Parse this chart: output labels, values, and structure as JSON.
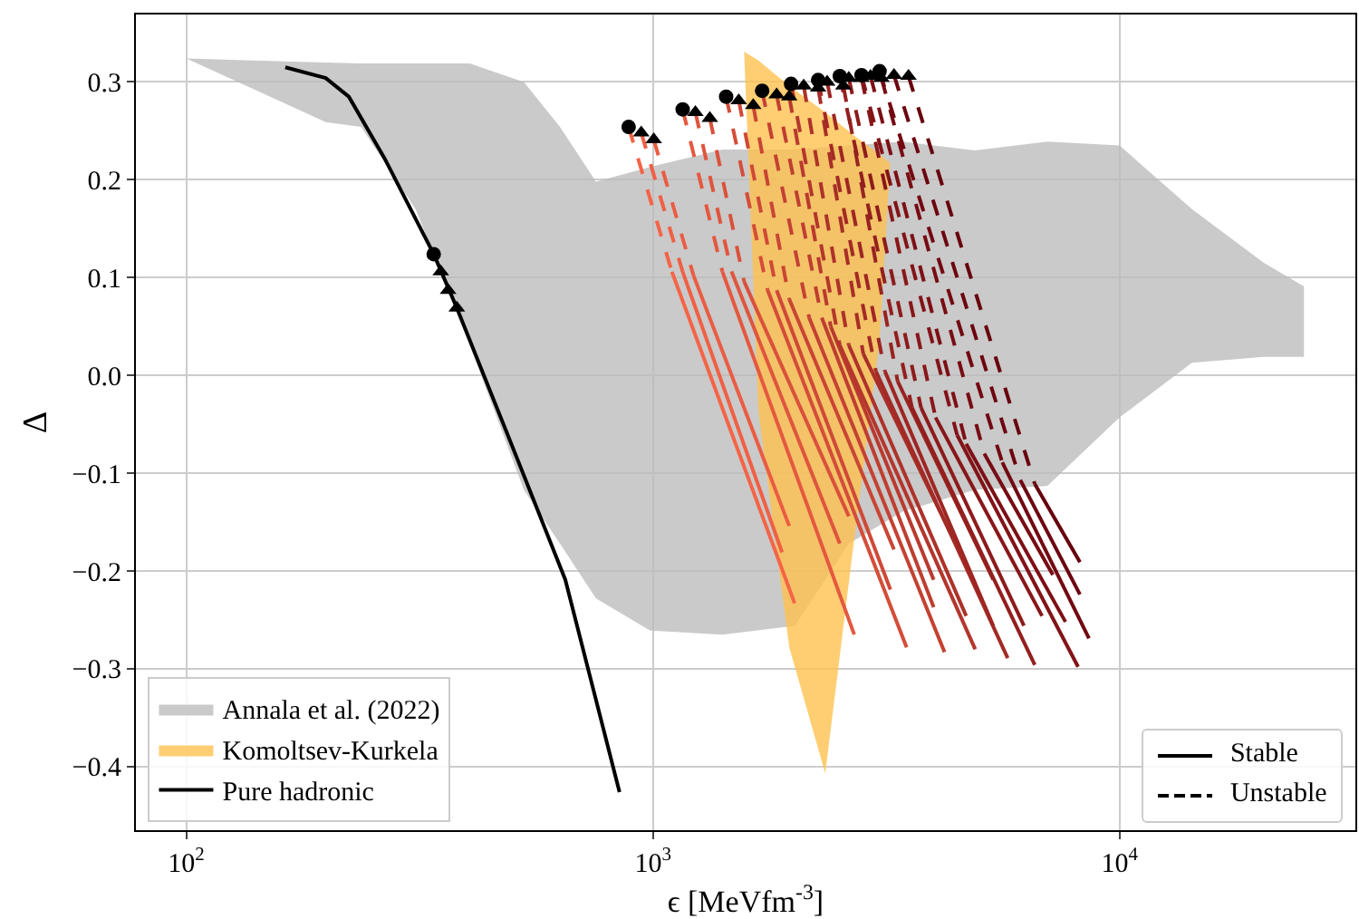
{
  "chart_data": {
    "type": "line",
    "xlabel": "ϵ [MeVfm$^{-3}$]",
    "ylabel": "Δ",
    "log": "x",
    "grid": true,
    "legend": [
      "bottom left",
      "bottom right"
    ],
    "xlim": [
      78,
      32000
    ],
    "xticks": [
      {
        "value": 100,
        "label": "10$^{2}$"
      },
      {
        "value": 1000,
        "label": "10$^{3}$"
      },
      {
        "value": 10000,
        "label": "10$^{4}$"
      }
    ],
    "ylim": [
      -0.465,
      0.369
    ],
    "yticks": [
      {
        "value": -0.4,
        "label": "−0.4"
      },
      {
        "value": -0.3,
        "label": "−0.3"
      },
      {
        "value": -0.2,
        "label": "−0.2"
      },
      {
        "value": -0.1,
        "label": "−0.1"
      },
      {
        "value": 0,
        "label": "0.0"
      },
      0.1,
      0.2,
      0.3
    ],
    "series": [
      {
        "type": "area",
        "name": "Annala et al. (2022)",
        "color": "#bdbdbd",
        "x": [
          100,
          199,
          237,
          310,
          405,
          529,
          632,
          755,
          986,
          1409,
          2014,
          2630,
          3434,
          4898,
          7000,
          10000,
          14290,
          20370,
          24830
        ],
        "values": [
          null,
          null,
          null,
          null,
          null,
          null,
          null,
          null,
          null,
          null,
          null,
          null,
          null,
          null,
          null,
          null,
          null,
          null,
          null
        ],
        "upper": [
          0.324,
          0.32,
          0.319,
          0.319,
          0.319,
          0.3,
          0.254,
          0.198,
          0.213,
          0.231,
          0.231,
          0.235,
          0.239,
          0.23,
          0.239,
          0.235,
          0.17,
          0.115,
          0.091
        ],
        "lower": [
          0.324,
          0.259,
          0.254,
          0.17,
          0.031,
          -0.117,
          -0.172,
          -0.228,
          -0.261,
          -0.265,
          -0.256,
          -0.172,
          -0.139,
          -0.117,
          -0.113,
          -0.043,
          0.013,
          0.019,
          0.019
        ]
      },
      {
        "type": "area",
        "name": "Komoltsev-Kurkela",
        "color": "#ffc250",
        "x": [
          1568,
          1683,
          1959,
          2340,
          2700,
          3060,
          3224
        ],
        "values": [
          null,
          null,
          null,
          null,
          null,
          null,
          null
        ],
        "upper": [
          0.331,
          0.322,
          0.296,
          0.269,
          0.245,
          0.226,
          0.217
        ],
        "lower": [
          0.331,
          -0.037,
          -0.278,
          -0.407,
          -0.167,
          0.037,
          0.217
        ]
      },
      {
        "line_style": "dashed",
        "color": "#f56446",
        "x": [
          887,
          1098
        ],
        "values": [
          0.254,
          0.106
        ]
      },
      {
        "line_style": "solid",
        "color": "#f56446",
        "x": [
          1098,
          2012
        ],
        "values": [
          0.106,
          -0.233
        ]
      },
      {
        "line_style": "dashed",
        "color": "#f06044",
        "x": [
          944,
          1158
        ],
        "values": [
          0.248,
          0.106
        ]
      },
      {
        "line_style": "solid",
        "color": "#f06044",
        "x": [
          1158,
          1891
        ],
        "values": [
          0.106,
          -0.181
        ]
      },
      {
        "line_style": "dashed",
        "color": "#ea5c42",
        "x": [
          1004,
          1222
        ],
        "values": [
          0.241,
          0.102
        ]
      },
      {
        "line_style": "solid",
        "color": "#ea5c42",
        "x": [
          1222,
          1959
        ],
        "values": [
          0.102,
          -0.154
        ]
      },
      {
        "line_style": "dashed",
        "color": "#e5583f",
        "x": [
          1158,
          1409
        ],
        "values": [
          0.272,
          0.106
        ]
      },
      {
        "line_style": "solid",
        "color": "#e5583f",
        "x": [
          1409,
          2700
        ],
        "values": [
          0.106,
          -0.265
        ]
      },
      {
        "line_style": "dashed",
        "color": "#df553d",
        "x": [
          1233,
          1474
        ],
        "values": [
          0.269,
          0.106
        ]
      },
      {
        "line_style": "solid",
        "color": "#df553d",
        "x": [
          1474,
          2514
        ],
        "values": [
          0.106,
          -0.172
        ]
      },
      {
        "line_style": "dashed",
        "color": "#da513b",
        "x": [
          1324,
          1568
        ],
        "values": [
          0.263,
          0.096
        ]
      },
      {
        "line_style": "solid",
        "color": "#da513b",
        "x": [
          1568,
          2628
        ],
        "values": [
          0.096,
          -0.144
        ]
      },
      {
        "line_style": "dashed",
        "color": "#d44d39",
        "x": [
          1435,
          1761
        ],
        "values": [
          0.285,
          0.087
        ]
      },
      {
        "line_style": "solid",
        "color": "#d44d39",
        "x": [
          1761,
          3496
        ],
        "values": [
          0.087,
          -0.278
        ]
      },
      {
        "line_style": "dashed",
        "color": "#cf4937",
        "x": [
          1527,
          1841
        ],
        "values": [
          0.281,
          0.087
        ]
      },
      {
        "line_style": "solid",
        "color": "#cf4937",
        "x": [
          1841,
          3227
        ],
        "values": [
          0.087,
          -0.219
        ]
      },
      {
        "line_style": "dashed",
        "color": "#c94534",
        "x": [
          1640,
          1959
        ],
        "values": [
          0.276,
          0.078
        ]
      },
      {
        "line_style": "solid",
        "color": "#c94534",
        "x": [
          1959,
          3285
        ],
        "values": [
          0.078,
          -0.178
        ]
      },
      {
        "line_style": "dashed",
        "color": "#c44132",
        "x": [
          1714,
          2161
        ],
        "values": [
          0.291,
          0.059
        ]
      },
      {
        "line_style": "solid",
        "color": "#c44132",
        "x": [
          2161,
          4215
        ],
        "values": [
          0.059,
          -0.283
        ]
      },
      {
        "line_style": "dashed",
        "color": "#be3e30",
        "x": [
          1841,
          2300
        ],
        "values": [
          0.287,
          0.059
        ]
      },
      {
        "line_style": "solid",
        "color": "#be3e30",
        "x": [
          2300,
          3996
        ],
        "values": [
          0.059,
          -0.237
        ]
      },
      {
        "line_style": "dashed",
        "color": "#b93a2e",
        "x": [
          1959,
          2404
        ],
        "values": [
          0.285,
          0.05
        ]
      },
      {
        "line_style": "solid",
        "color": "#b93a2e",
        "x": [
          2404,
          3996
        ],
        "values": [
          0.05,
          -0.209
        ]
      },
      {
        "line_style": "dashed",
        "color": "#b4362c",
        "x": [
          1977,
          2514
        ],
        "values": [
          0.298,
          0.031
        ]
      },
      {
        "line_style": "solid",
        "color": "#b4362c",
        "x": [
          2514,
          4904
        ],
        "values": [
          0.031,
          -0.28
        ]
      },
      {
        "line_style": "dashed",
        "color": "#ae3229",
        "x": [
          2104,
          2628
        ],
        "values": [
          0.296,
          0.031
        ]
      },
      {
        "line_style": "solid",
        "color": "#ae3229",
        "x": [
          2628,
          4690
        ],
        "values": [
          0.031,
          -0.246
        ]
      },
      {
        "line_style": "dashed",
        "color": "#a82e27",
        "x": [
          2259,
          2823
        ],
        "values": [
          0.294,
          0.022
        ]
      },
      {
        "line_style": "solid",
        "color": "#a82e27",
        "x": [
          2823,
          4904
        ],
        "values": [
          0.022,
          -0.213
        ]
      },
      {
        "line_style": "dashed",
        "color": "#a32a25",
        "x": [
          2259,
          3005
        ],
        "values": [
          0.302,
          0.004
        ]
      },
      {
        "line_style": "solid",
        "color": "#a32a25",
        "x": [
          3005,
          5757
        ],
        "values": [
          0.004,
          -0.289
        ]
      },
      {
        "line_style": "dashed",
        "color": "#9e2623",
        "x": [
          2362,
          3142
        ],
        "values": [
          0.3,
          0.004
        ]
      },
      {
        "line_style": "solid",
        "color": "#9e2623",
        "x": [
          3142,
          5361
        ],
        "values": [
          0.004,
          -0.256
        ]
      },
      {
        "line_style": "dashed",
        "color": "#982320",
        "x": [
          2559,
          3344
        ],
        "values": [
          0.296,
          -0.006
        ]
      },
      {
        "line_style": "solid",
        "color": "#982320",
        "x": [
          3344,
          5361
        ],
        "values": [
          -0.006,
          -0.209
        ]
      },
      {
        "line_style": "dashed",
        "color": "#931f1e",
        "x": [
          2514,
          3591
        ],
        "values": [
          0.306,
          -0.033
        ]
      },
      {
        "line_style": "solid",
        "color": "#931f1e",
        "x": [
          3591,
          6580
        ],
        "values": [
          -0.033,
          -0.296
        ]
      },
      {
        "line_style": "dashed",
        "color": "#8d1b1c",
        "x": [
          2628,
          3754
        ],
        "values": [
          0.304,
          -0.033
        ]
      },
      {
        "line_style": "solid",
        "color": "#8d1b1c",
        "x": [
          3754,
          6237
        ],
        "values": [
          -0.033,
          -0.256
        ]
      },
      {
        "line_style": "dashed",
        "color": "#88171a",
        "x": [
          2798,
          4032
        ],
        "values": [
          0.304,
          -0.043
        ]
      },
      {
        "line_style": "solid",
        "color": "#88171a",
        "x": [
          4032,
          6820
        ],
        "values": [
          -0.043,
          -0.246
        ]
      },
      {
        "line_style": "dashed",
        "color": "#821318",
        "x": [
          2798,
          4485
        ],
        "values": [
          0.307,
          -0.061
        ]
      },
      {
        "line_style": "solid",
        "color": "#821318",
        "x": [
          4485,
          8147
        ],
        "values": [
          -0.061,
          -0.298
        ]
      },
      {
        "line_style": "dashed",
        "color": "#7d0f15",
        "x": [
          2926,
          4690
        ],
        "values": [
          0.306,
          -0.07
        ]
      },
      {
        "line_style": "solid",
        "color": "#7d0f15",
        "x": [
          4690,
          7655
        ],
        "values": [
          -0.07,
          -0.252
        ]
      },
      {
        "line_style": "dashed",
        "color": "#770c13",
        "x": [
          3087,
          5128
        ],
        "values": [
          0.304,
          -0.08
        ]
      },
      {
        "line_style": "solid",
        "color": "#770c13",
        "x": [
          5128,
          7193
        ],
        "values": [
          -0.08,
          -0.204
        ]
      },
      {
        "line_style": "dashed",
        "color": "#720811",
        "x": [
          3059,
          5605
        ],
        "values": [
          0.311,
          -0.089
        ]
      },
      {
        "line_style": "solid",
        "color": "#720811",
        "x": [
          5605,
          8596
        ],
        "values": [
          -0.089,
          -0.269
        ]
      },
      {
        "line_style": "dashed",
        "color": "#6c040f",
        "x": [
          3285,
          6127
        ],
        "values": [
          0.307,
          -0.107
        ]
      },
      {
        "line_style": "solid",
        "color": "#6c040f",
        "x": [
          6127,
          8221
        ],
        "values": [
          -0.107,
          -0.224
        ]
      },
      {
        "line_style": "dashed",
        "color": "#67000d",
        "x": [
          3528,
          6580
        ],
        "values": [
          0.306,
          -0.111
        ]
      },
      {
        "line_style": "solid",
        "color": "#67000d",
        "x": [
          6580,
          8221
        ],
        "values": [
          -0.111,
          -0.191
        ]
      },
      {
        "name": "Pure hadronic",
        "line_style": "solid",
        "color": "#000000",
        "x": [
          163,
          199,
          223,
          266,
          339,
          380,
          484,
          649,
          848
        ],
        "values": [
          0.315,
          0.304,
          0.285,
          0.222,
          0.124,
          0.069,
          -0.056,
          -0.209,
          -0.426
        ]
      },
      {
        "type": "scatter",
        "marker": "circle",
        "color": "#000000",
        "x": [
          339,
          887,
          1158,
          1435,
          1714,
          1977,
          2259,
          2514,
          2798,
          3059
        ],
        "values": [
          0.124,
          0.254,
          0.272,
          0.285,
          0.291,
          0.298,
          0.302,
          0.306,
          0.307,
          0.311
        ]
      },
      {
        "type": "scatter",
        "marker": "triangle",
        "color": "#000000",
        "x": [
          351,
          364,
          380,
          944,
          1004,
          1233,
          1324,
          1527,
          1640,
          1841,
          1959,
          2104,
          2259,
          2362,
          2559,
          2628,
          2798,
          2926,
          3087,
          3285,
          3528
        ],
        "values": [
          0.106,
          0.087,
          0.069,
          0.248,
          0.241,
          0.269,
          0.263,
          0.281,
          0.276,
          0.287,
          0.285,
          0.296,
          0.294,
          0.3,
          0.296,
          0.304,
          0.304,
          0.306,
          0.304,
          0.307,
          0.306
        ]
      },
      {
        "name": "Stable",
        "line_style": "solid",
        "color": "#000000"
      },
      {
        "name": "Unstable",
        "line_style": "dashed",
        "color": "#000000"
      }
    ]
  }
}
